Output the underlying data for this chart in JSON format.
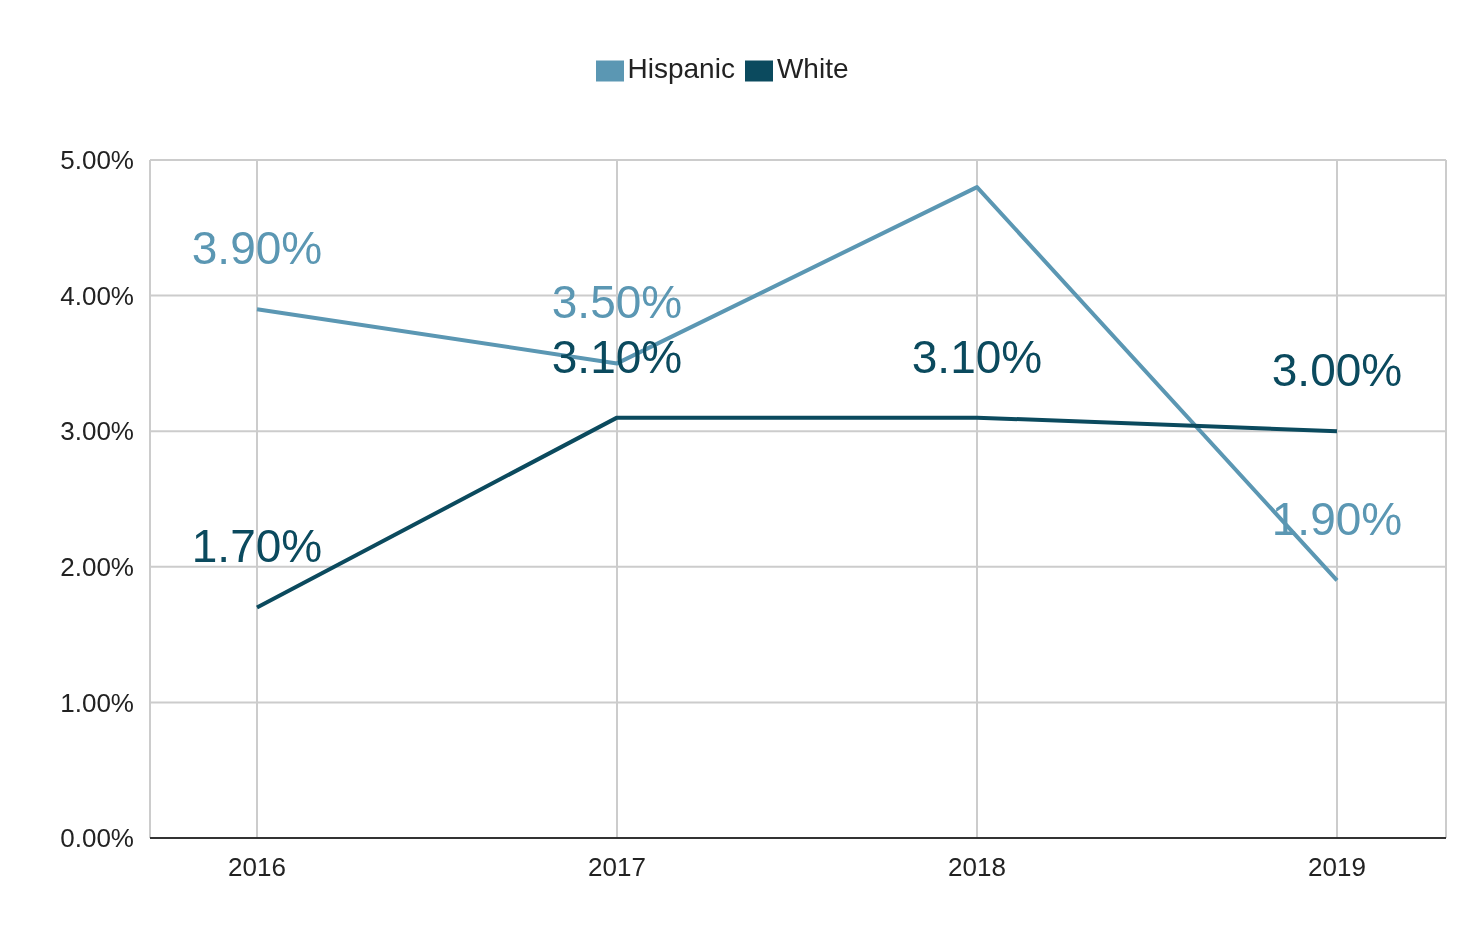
{
  "chart_data": {
    "type": "line",
    "categories": [
      "2016",
      "2017",
      "2018",
      "2019"
    ],
    "series": [
      {
        "name": "Hispanic",
        "color": "#5b97b3",
        "values": [
          3.9,
          3.5,
          4.8,
          1.9
        ],
        "value_labels": [
          "3.90%",
          "3.50%",
          null,
          "1.90%"
        ]
      },
      {
        "name": "White",
        "color": "#0b4a5e",
        "values": [
          1.7,
          3.1,
          3.1,
          3.0
        ],
        "value_labels": [
          "1.70%",
          "3.10%",
          "3.10%",
          "3.00%"
        ]
      }
    ],
    "ylim": [
      0,
      5
    ],
    "yticks": [
      {
        "value": 0,
        "label": "0.00%"
      },
      {
        "value": 1,
        "label": "1.00%"
      },
      {
        "value": 2,
        "label": "2.00%"
      },
      {
        "value": 3,
        "label": "3.00%"
      },
      {
        "value": 4,
        "label": "4.00%"
      },
      {
        "value": 5,
        "label": "5.00%"
      }
    ],
    "grid": true,
    "legend": "top",
    "marker": "none",
    "line_style": "solid"
  }
}
